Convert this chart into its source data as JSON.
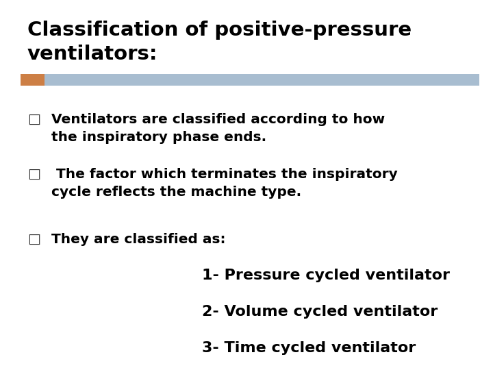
{
  "title_line1": "Classification of positive-pressure",
  "title_line2": "ventilators:",
  "title_fontsize": 21,
  "title_color": "#000000",
  "divider_color_left": "#CD7F45",
  "divider_color_right": "#A8BDD0",
  "bullet_char": "□",
  "bullet1_line1": "Ventilators are classified according to how",
  "bullet1_line2": "the inspiratory phase ends.",
  "bullet2_line1": " The factor which terminates the inspiratory",
  "bullet2_line2": "cycle reflects the machine type.",
  "bullet3_text": "They are classified as:",
  "item1": "1- Pressure cycled ventilator",
  "item2": "2- Volume cycled ventilator",
  "item3": "3- Time cycled ventilator",
  "body_fontsize": 14.5,
  "items_fontsize": 16,
  "background_color": "#ffffff",
  "fig_width": 7.2,
  "fig_height": 5.4,
  "dpi": 100
}
